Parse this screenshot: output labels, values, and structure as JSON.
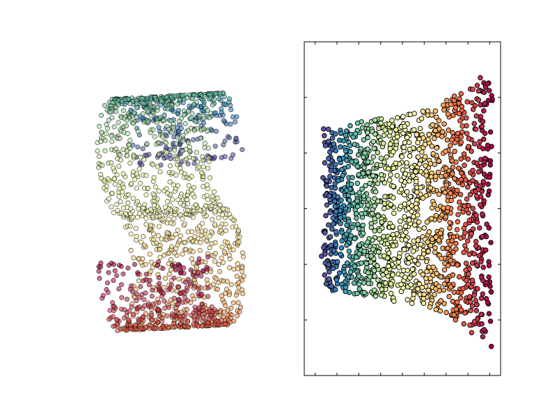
{
  "figure": {
    "background": "#ffffff"
  },
  "chart_data": [
    {
      "type": "scatter",
      "projection": "3d",
      "description_title": "",
      "xlabel": "",
      "ylabel": "",
      "axes_visible": false,
      "grid": false,
      "colormap": [
        "#5e4fa2",
        "#3288bd",
        "#66c2a5",
        "#abdda4",
        "#e6f598",
        "#ffffbf",
        "#fee08b",
        "#fdae61",
        "#f46d43",
        "#d53e4f",
        "#9e0142"
      ],
      "manifold": "s-curve",
      "n_points": 1500,
      "t_range": [
        -4.71,
        4.71
      ],
      "height_range": [
        0,
        2
      ],
      "elev": 10,
      "azim": -72,
      "marker_alpha": 0.6
    },
    {
      "type": "scatter",
      "title": "",
      "xlabel": "",
      "ylabel": "",
      "grid": false,
      "tick_labels_visible": false,
      "xlim": [
        -0.09,
        0.09
      ],
      "ylim": [
        -0.06,
        0.06
      ],
      "x_ticks": [
        -0.08,
        -0.06,
        -0.04,
        -0.02,
        0.0,
        0.02,
        0.04,
        0.06,
        0.08
      ],
      "y_ticks": [
        -0.04,
        -0.02,
        0.0,
        0.02,
        0.04
      ],
      "colormap": [
        "#5e4fa2",
        "#3288bd",
        "#66c2a5",
        "#abdda4",
        "#e6f598",
        "#ffffbf",
        "#fee08b",
        "#fdae61",
        "#f46d43",
        "#d53e4f",
        "#9e0142"
      ],
      "n_points": 1500,
      "x_from": -0.073,
      "x_to": 0.082,
      "y_halfwidth_left": 0.029,
      "y_halfwidth_mid": 0.034,
      "y_halfwidth_right": 0.051,
      "marker_alpha": 1.0
    }
  ]
}
